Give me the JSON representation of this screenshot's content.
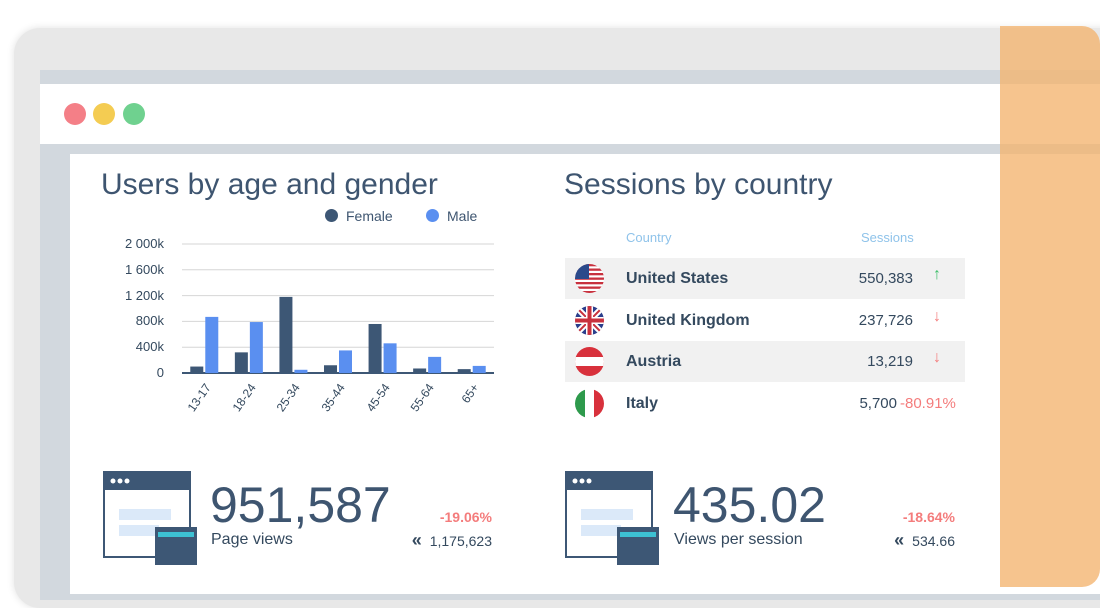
{
  "colors": {
    "female": "#3d5775",
    "male": "#5a8ff0",
    "up": "#3fbf6a",
    "down": "#f47c7c"
  },
  "window": {
    "controls": [
      "close",
      "minimize",
      "maximize"
    ]
  },
  "age_chart": {
    "title": "Users by age and gender",
    "legend": {
      "female": "Female",
      "male": "Male"
    },
    "y_ticks": [
      "2 000k",
      "1 600k",
      "1 200k",
      "800k",
      "400k",
      "0"
    ],
    "chart_data": {
      "type": "bar",
      "categories": [
        "13-17",
        "18-24",
        "25-34",
        "35-44",
        "45-54",
        "55-64",
        "65+"
      ],
      "series": [
        {
          "name": "Female",
          "values": [
            100000,
            320000,
            1180000,
            120000,
            760000,
            70000,
            60000
          ]
        },
        {
          "name": "Male",
          "values": [
            870000,
            790000,
            50000,
            350000,
            460000,
            250000,
            110000
          ]
        }
      ],
      "ylim": [
        0,
        2000000
      ]
    }
  },
  "sessions": {
    "title": "Sessions by country",
    "headers": {
      "country": "Country",
      "sessions": "Sessions"
    },
    "rows": [
      {
        "country": "United States",
        "sessions": "550,383",
        "trend": "up"
      },
      {
        "country": "United Kingdom",
        "sessions": "237,726",
        "trend": "down"
      },
      {
        "country": "Austria",
        "sessions": "13,219",
        "trend": "down"
      },
      {
        "country": "Italy",
        "sessions": "5,700",
        "change": "-80.91%"
      }
    ]
  },
  "metrics": [
    {
      "value": "951,587",
      "label": "Page views",
      "change": "-19.06%",
      "previous": "1,175,623"
    },
    {
      "value": "435.02",
      "label": "Views per session",
      "change": "-18.64%",
      "previous": "534.66"
    }
  ],
  "icons": {
    "trend_up": "↑",
    "trend_down": "↓",
    "previous": "«"
  }
}
